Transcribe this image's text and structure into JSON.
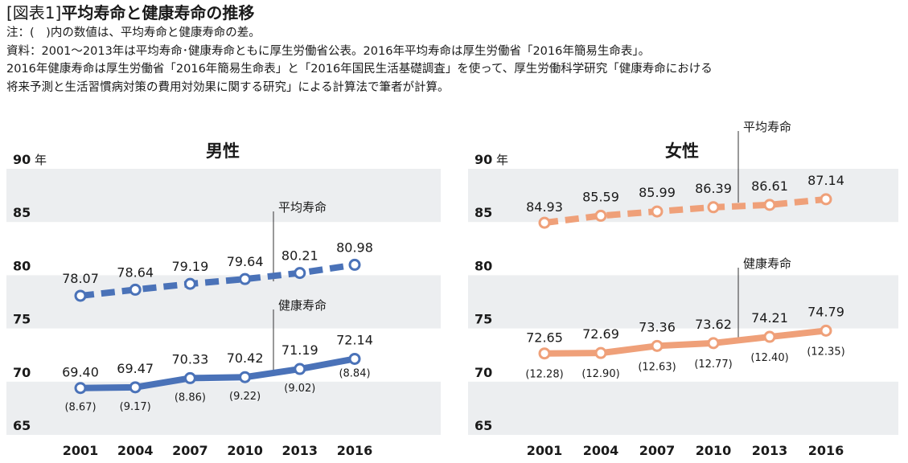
{
  "header": {
    "title_prefix": "[図表1]",
    "title_main": "平均寿命と健康寿命の推移",
    "note_lines": [
      "注：(　)内の数値は、平均寿命と健康寿命の差。",
      "資料：2001～2013年は平均寿命･健康寿命ともに厚生労働省公表。2016年平均寿命は厚生労働省「2016年簡易生命表」。",
      "2016年健康寿命は厚生労働省「2016年簡易生命表」と「2016年国民生活基礎調査」を使って、厚生労働科学研究「健康寿命における",
      "将来予測と生活習慣病対策の費用対効果に関する研究」による計算法で筆者が計算。"
    ]
  },
  "colors": {
    "male_line": "#4a72b8",
    "female_line": "#efa079",
    "band": "#eceef0"
  },
  "chart_data": [
    {
      "type": "line",
      "panel": "male",
      "title": "男性",
      "ylabel": "年",
      "y_ticks": [
        "90",
        "85",
        "80",
        "75",
        "70",
        "65"
      ],
      "ylim": [
        65,
        90
      ],
      "categories": [
        "2001",
        "2004",
        "2007",
        "2010",
        "2013",
        "2016"
      ],
      "series": [
        {
          "name": "平均寿命",
          "style": "dashed",
          "values": [
            78.07,
            78.64,
            79.19,
            79.64,
            80.21,
            80.98
          ],
          "labels": [
            "78.07",
            "78.64",
            "79.19",
            "79.64",
            "80.21",
            "80.98"
          ]
        },
        {
          "name": "健康寿命",
          "style": "solid",
          "values": [
            69.4,
            69.47,
            70.33,
            70.42,
            71.19,
            72.14
          ],
          "labels": [
            "69.40",
            "69.47",
            "70.33",
            "70.42",
            "71.19",
            "72.14"
          ]
        }
      ],
      "differences": [
        "(8.67)",
        "(9.17)",
        "(8.86)",
        "(9.22)",
        "(9.02)",
        "(8.84)"
      ]
    },
    {
      "type": "line",
      "panel": "female",
      "title": "女性",
      "ylabel": "年",
      "y_ticks": [
        "90",
        "85",
        "80",
        "75",
        "70",
        "65"
      ],
      "ylim": [
        65,
        90
      ],
      "categories": [
        "2001",
        "2004",
        "2007",
        "2010",
        "2013",
        "2016"
      ],
      "series": [
        {
          "name": "平均寿命",
          "style": "dashed",
          "values": [
            84.93,
            85.59,
            85.99,
            86.39,
            86.61,
            87.14
          ],
          "labels": [
            "84.93",
            "85.59",
            "85.99",
            "86.39",
            "86.61",
            "87.14"
          ]
        },
        {
          "name": "健康寿命",
          "style": "solid",
          "values": [
            72.65,
            72.69,
            73.36,
            73.62,
            74.21,
            74.79
          ],
          "labels": [
            "72.65",
            "72.69",
            "73.36",
            "73.62",
            "74.21",
            "74.79"
          ]
        }
      ],
      "differences": [
        "(12.28)",
        "(12.90)",
        "(12.63)",
        "(12.77)",
        "(12.40)",
        "(12.35)"
      ]
    }
  ]
}
